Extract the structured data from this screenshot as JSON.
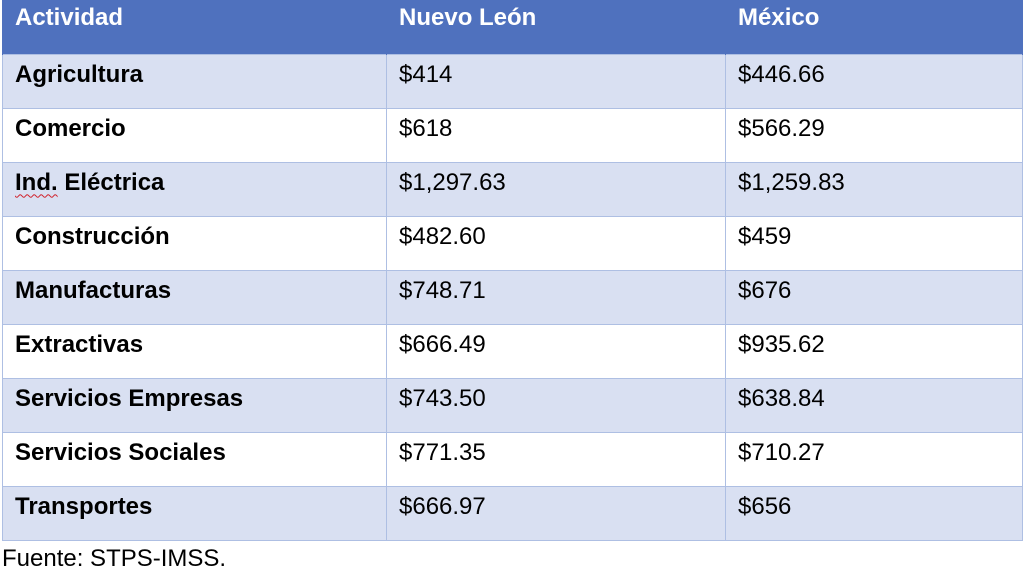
{
  "table": {
    "headers": [
      "Actividad",
      "Nuevo León",
      "México"
    ],
    "rows": [
      {
        "actividad": "Agricultura",
        "nuevo_leon": "$414",
        "mexico": "$446.66"
      },
      {
        "actividad": "Comercio",
        "nuevo_leon": "$618",
        "mexico": "$566.29"
      },
      {
        "actividad_prefix": "Ind.",
        "actividad_rest": " Eléctrica",
        "nuevo_leon": "$1,297.63",
        "mexico": "$1,259.83"
      },
      {
        "actividad": "Construcción",
        "nuevo_leon": "$482.60",
        "mexico": "$459"
      },
      {
        "actividad": "Manufacturas",
        "nuevo_leon": "$748.71",
        "mexico": "$676"
      },
      {
        "actividad": "Extractivas",
        "nuevo_leon": "$666.49",
        "mexico": "$935.62"
      },
      {
        "actividad": "Servicios Empresas",
        "nuevo_leon": "$743.50",
        "mexico": "$638.84"
      },
      {
        "actividad": "Servicios Sociales",
        "nuevo_leon": "$771.35",
        "mexico": "$710.27"
      },
      {
        "actividad": "Transportes",
        "nuevo_leon": "$666.97",
        "mexico": "$656"
      }
    ]
  },
  "footnote": "Fuente: STPS-IMSS.",
  "colors": {
    "header_bg": "#4f71be",
    "band_bg": "#d9e0f2",
    "border": "#aebfe3"
  }
}
